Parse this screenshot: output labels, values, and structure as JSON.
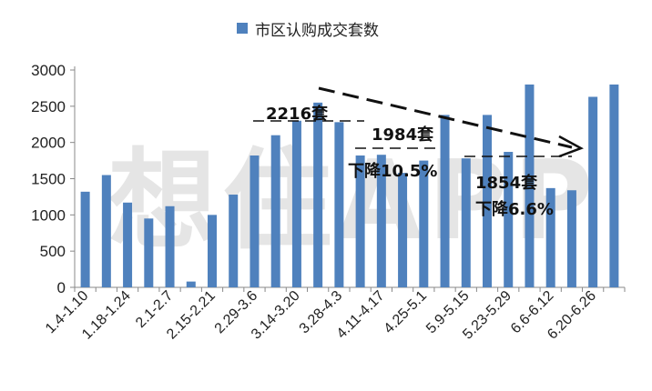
{
  "chart_data": {
    "type": "bar",
    "series": [
      {
        "name": "市区认购成交套数",
        "color": "#4F81BD",
        "values": [
          1320,
          1550,
          1170,
          950,
          1120,
          80,
          1000,
          1280,
          1820,
          2100,
          2300,
          2550,
          2280,
          1820,
          1830,
          1580,
          1750,
          2380,
          1780,
          2380,
          1870,
          2800,
          1370,
          1340,
          2630,
          2800
        ]
      }
    ],
    "x_tick_labels": [
      "1.4-1.10",
      "1.18-1.24",
      "2.1-2.7",
      "2.15-2.21",
      "2.29-3.6",
      "3.14-3.20",
      "3.28-4.3",
      "4.11-4.17",
      "4.25-5.1",
      "5.9-5.15",
      "5.23-5.29",
      "6.6-6.12",
      "6.20-6.26"
    ],
    "ylim": [
      0,
      3000
    ],
    "yticks": [
      0,
      500,
      1000,
      1500,
      2000,
      2500,
      3000
    ],
    "annotations": [
      {
        "text": "2216套"
      },
      {
        "text": "1984套"
      },
      {
        "text": "下降10.5%"
      },
      {
        "text": "1854套"
      },
      {
        "text": "下降6.6%"
      }
    ],
    "watermark": "想住APP",
    "grid": false,
    "legend_position": "top"
  }
}
